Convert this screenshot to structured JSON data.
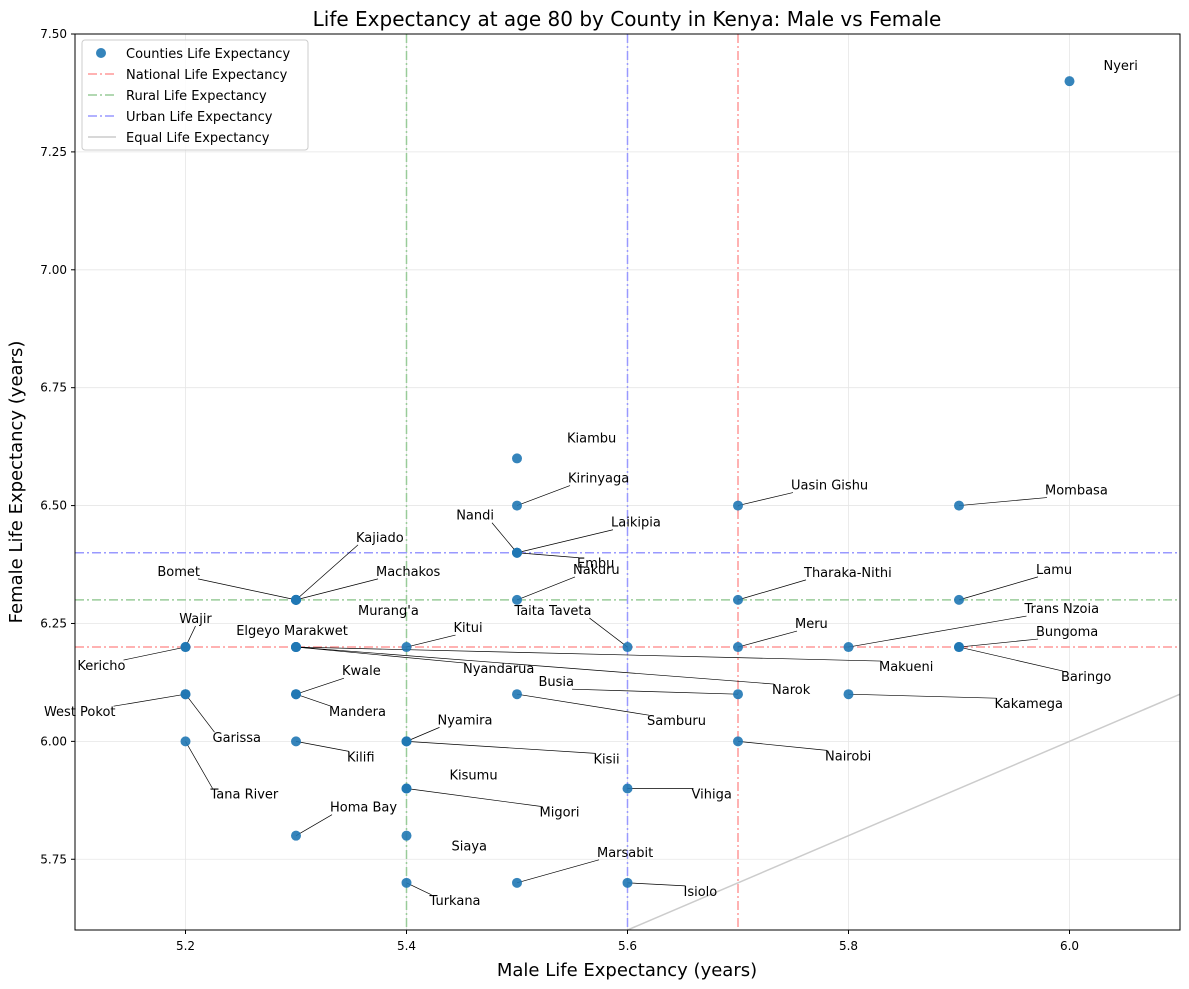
{
  "chart_data": {
    "type": "scatter",
    "title": "Life Expectancy at age 80 by County in Kenya: Male vs Female",
    "xlabel": "Male Life Expectancy (years)",
    "ylabel": "Female Life Expectancy (years)",
    "xlim": [
      5.1,
      6.1
    ],
    "ylim": [
      5.6,
      7.5
    ],
    "x_ticks": [
      "5.2",
      "5.4",
      "5.6",
      "5.8",
      "6.0"
    ],
    "y_ticks": [
      "5.75",
      "6.00",
      "6.25",
      "6.50",
      "6.75",
      "7.00",
      "7.25",
      "7.50"
    ],
    "grid": true,
    "legend_position": "upper-left",
    "legend": [
      {
        "label": "Counties Life Expectancy",
        "kind": "marker",
        "color": "#1f77b4"
      },
      {
        "label": "National Life Expectancy",
        "kind": "dashdot",
        "color": "#ff9999"
      },
      {
        "label": "Rural Life Expectancy",
        "kind": "dashdot",
        "color": "#99cc99"
      },
      {
        "label": "Urban Life Expectancy",
        "kind": "dashdot",
        "color": "#9999ff"
      },
      {
        "label": "Equal Life Expectancy",
        "kind": "solid",
        "color": "#cccccc"
      }
    ],
    "reference_lines": {
      "national": {
        "male": 5.7,
        "female": 6.2,
        "color": "#ff9999"
      },
      "rural": {
        "male": 5.4,
        "female": 6.3,
        "color": "#99cc99"
      },
      "urban": {
        "male": 5.6,
        "female": 6.4,
        "color": "#9999ff"
      },
      "equal_color": "#cccccc"
    },
    "point_color": "#1f77b4",
    "points": [
      {
        "county": "Nyeri",
        "male": 6.0,
        "female": 7.4,
        "ldx": 36,
        "ldy": -8
      },
      {
        "county": "Kiambu",
        "male": 5.5,
        "female": 6.6,
        "ldx": 52,
        "ldy": -13
      },
      {
        "county": "Kirinyaga",
        "male": 5.5,
        "female": 6.5,
        "ldx": 53,
        "ldy": -20
      },
      {
        "county": "Nandi",
        "male": 5.5,
        "female": 6.4,
        "ldx": -25,
        "ldy": -30
      },
      {
        "county": "Laikipia",
        "male": 5.5,
        "female": 6.4,
        "ldx": 96,
        "ldy": -23
      },
      {
        "county": "Embu",
        "male": 5.5,
        "female": 6.4,
        "ldx": 62,
        "ldy": 5
      },
      {
        "county": "Nakuru",
        "male": 5.5,
        "female": 6.3,
        "ldx": 58,
        "ldy": -23
      },
      {
        "county": "Uasin Gishu",
        "male": 5.7,
        "female": 6.5,
        "ldx": 55,
        "ldy": -13
      },
      {
        "county": "Mombasa",
        "male": 5.9,
        "female": 6.5,
        "ldx": 88,
        "ldy": -8
      },
      {
        "county": "Kajiado",
        "male": 5.3,
        "female": 6.3,
        "ldx": 62,
        "ldy": -55
      },
      {
        "county": "Bomet",
        "male": 5.3,
        "female": 6.3,
        "ldx": -98,
        "ldy": -21
      },
      {
        "county": "Machakos",
        "male": 5.3,
        "female": 6.3,
        "ldx": 82,
        "ldy": -21
      },
      {
        "county": "Murang'a",
        "male": 5.3,
        "female": 6.3,
        "ldx": 64,
        "ldy": 5
      },
      {
        "county": "Tharaka-Nithi",
        "male": 5.7,
        "female": 6.3,
        "ldx": 68,
        "ldy": -20
      },
      {
        "county": "Lamu",
        "male": 5.9,
        "female": 6.3,
        "ldx": 79,
        "ldy": -23
      },
      {
        "county": "Trans Nzoia",
        "male": 5.8,
        "female": 6.2,
        "ldx": 178,
        "ldy": -31
      },
      {
        "county": "Bungoma",
        "male": 5.9,
        "female": 6.2,
        "ldx": 79,
        "ldy": -8
      },
      {
        "county": "Baringo",
        "male": 5.9,
        "female": 6.2,
        "ldx": 104,
        "ldy": 24
      },
      {
        "county": "Meru",
        "male": 5.7,
        "female": 6.2,
        "ldx": 59,
        "ldy": -16
      },
      {
        "county": "Makueni",
        "male": 5.3,
        "female": 6.2,
        "ldx": 585,
        "ldy": 14
      },
      {
        "county": "Taita Taveta",
        "male": 5.6,
        "female": 6.2,
        "ldx": -38,
        "ldy": -29
      },
      {
        "county": "Kitui",
        "male": 5.4,
        "female": 6.2,
        "ldx": 49,
        "ldy": -12
      },
      {
        "county": "Wajir",
        "male": 5.2,
        "female": 6.2,
        "ldx": 10,
        "ldy": -21
      },
      {
        "county": "Kericho",
        "male": 5.2,
        "female": 6.2,
        "ldx": -62,
        "ldy": 13
      },
      {
        "county": "Elgeyo Marakwet",
        "male": 5.3,
        "female": 6.2,
        "ldx": -4,
        "ldy": -9
      },
      {
        "county": "Nyandarua",
        "male": 5.3,
        "female": 6.2,
        "ldx": 169,
        "ldy": 16
      },
      {
        "county": "Narok",
        "male": 5.3,
        "female": 6.2,
        "ldx": 478,
        "ldy": 37
      },
      {
        "county": "Kwale",
        "male": 5.3,
        "female": 6.1,
        "ldx": 48,
        "ldy": -16
      },
      {
        "county": "Mandera",
        "male": 5.3,
        "female": 6.1,
        "ldx": 35,
        "ldy": 12
      },
      {
        "county": "Busia",
        "male": 5.7,
        "female": 6.1,
        "ldx": -166,
        "ldy": -5
      },
      {
        "county": "Samburu",
        "male": 5.5,
        "female": 6.1,
        "ldx": 132,
        "ldy": 21
      },
      {
        "county": "Kakamega",
        "male": 5.8,
        "female": 6.1,
        "ldx": 148,
        "ldy": 4
      },
      {
        "county": "West Pokot",
        "male": 5.2,
        "female": 6.1,
        "ldx": -72,
        "ldy": 12
      },
      {
        "county": "Garissa",
        "male": 5.2,
        "female": 6.1,
        "ldx": 29,
        "ldy": 38
      },
      {
        "county": "Tana River",
        "male": 5.2,
        "female": 6.0,
        "ldx": 27,
        "ldy": 47
      },
      {
        "county": "Kilifi",
        "male": 5.3,
        "female": 6.0,
        "ldx": 53,
        "ldy": 10
      },
      {
        "county": "Nyamira",
        "male": 5.4,
        "female": 6.0,
        "ldx": 33,
        "ldy": -14
      },
      {
        "county": "Kisii",
        "male": 5.4,
        "female": 6.0,
        "ldx": 189,
        "ldy": 12
      },
      {
        "county": "Nairobi",
        "male": 5.7,
        "female": 6.0,
        "ldx": 89,
        "ldy": 9
      },
      {
        "county": "Kisumu",
        "male": 5.4,
        "female": 5.9,
        "ldx": 45,
        "ldy": -6
      },
      {
        "county": "Migori",
        "male": 5.4,
        "female": 5.9,
        "ldx": 135,
        "ldy": 18
      },
      {
        "county": "Vihiga",
        "male": 5.6,
        "female": 5.9,
        "ldx": 66,
        "ldy": 0
      },
      {
        "county": "Homa Bay",
        "male": 5.3,
        "female": 5.8,
        "ldx": 36,
        "ldy": -21
      },
      {
        "county": "Siaya",
        "male": 5.4,
        "female": 5.8,
        "ldx": 47,
        "ldy": 5
      },
      {
        "county": "Turkana",
        "male": 5.4,
        "female": 5.7,
        "ldx": 25,
        "ldy": 12
      },
      {
        "county": "Marsabit",
        "male": 5.5,
        "female": 5.7,
        "ldx": 82,
        "ldy": -23
      },
      {
        "county": "Isiolo",
        "male": 5.6,
        "female": 5.7,
        "ldx": 58,
        "ldy": 3
      }
    ]
  }
}
